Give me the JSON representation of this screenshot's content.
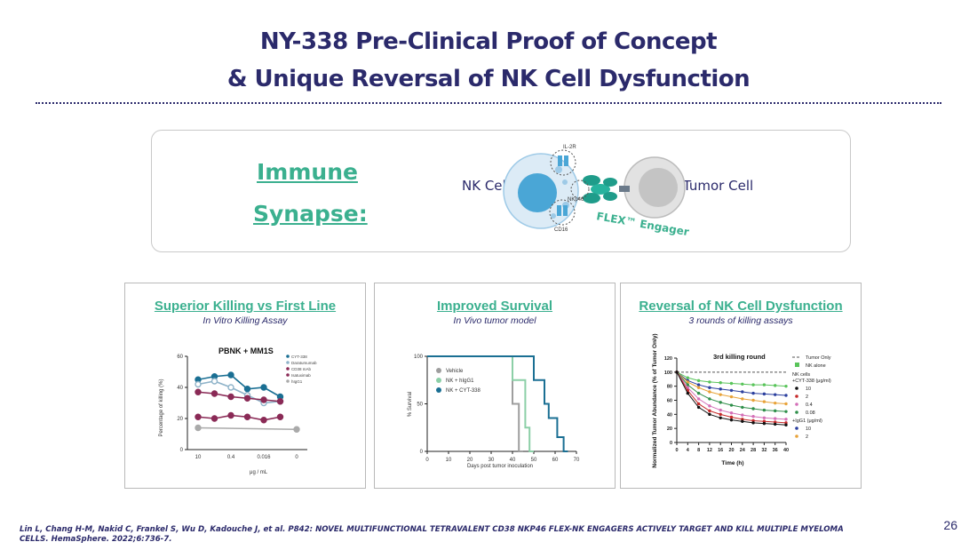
{
  "header": {
    "title_line1": "NY-338 Pre-Clinical Proof of Concept",
    "title_line2": "& Unique Reversal of NK Cell Dysfunction"
  },
  "synapse": {
    "label_line1": "Immune",
    "label_line2": "Synapse:",
    "nk_cell": "NK Cell",
    "tumor_cell": "Tumor Cell",
    "il2r": "IL-2R",
    "nkp46": "NKp46",
    "cd16": "CD16",
    "engager": "FLEX™ Engager",
    "colors": {
      "accent": "#3bb08f",
      "navy": "#2b2a6b",
      "nk": "#4aa6d6",
      "tumor": "#c4c4c4"
    }
  },
  "panels": {
    "killing": {
      "title": "Superior Killing vs First Line",
      "subtitle": "In Vitro Killing Assay",
      "chart_title": "PBNK + MM1S",
      "legend": [
        "CYT-338",
        "Daratumumab",
        "CD38 mAb",
        "Isatuximab",
        "hIgG1"
      ],
      "ylabel": "Percentage of killing (%)",
      "xlabel": "μg / mL",
      "xticks": [
        "10",
        "0.4",
        "0.016",
        "0"
      ],
      "yticks": [
        "0",
        "20",
        "40",
        "60"
      ]
    },
    "survival": {
      "title": "Improved Survival",
      "subtitle": "In Vivo tumor model",
      "legend": [
        "Vehicle",
        "NK + hIgG1",
        "NK + CYT-338"
      ],
      "ylabel": "% Survival",
      "xlabel": "Days post tumor inoculation",
      "xticks": [
        "0",
        "10",
        "20",
        "30",
        "40",
        "50",
        "60",
        "70"
      ],
      "yticks": [
        "0",
        "50",
        "100"
      ]
    },
    "reversal": {
      "title": "Reversal of NK Cell Dysfunction",
      "subtitle": "3 rounds of  killing assays",
      "chart_title": "3rd killing round",
      "legend": {
        "tumor_only": "Tumor Only",
        "nk_alone": "NK alone",
        "nk_cells": "NK cells",
        "cyt_header": "+CYT-338 (μg/ml)",
        "cyt": [
          "10",
          "2",
          "0.4",
          "0.08"
        ],
        "igg_header": "+IgG1 (μg/ml)",
        "igg": [
          "10",
          "2"
        ]
      },
      "ylabel": "Normalized Tumor Abundance (% of Tumor Only)",
      "xlabel": "Time (h)",
      "xticks": [
        "0",
        "4",
        "8",
        "12",
        "16",
        "20",
        "24",
        "28",
        "32",
        "36",
        "40"
      ],
      "yticks": [
        "0",
        "20",
        "40",
        "60",
        "80",
        "100",
        "120"
      ]
    }
  },
  "chart_data": [
    {
      "type": "line",
      "title": "PBNK + MM1S",
      "xlabel": "μg / mL",
      "ylabel": "Percentage of killing (%)",
      "categories": [
        "10",
        "",
        "0.4",
        "",
        "0.016",
        "",
        "0"
      ],
      "ylim": [
        0,
        60
      ],
      "series": [
        {
          "name": "CYT-338",
          "color": "#1a6f93",
          "values": [
            45,
            47,
            48,
            39,
            40,
            34,
            null
          ]
        },
        {
          "name": "Daratumumab",
          "color": "#8fb3c9",
          "values": [
            42,
            44,
            40,
            35,
            30,
            31,
            null
          ]
        },
        {
          "name": "CD38 mAb",
          "color": "#8a2a56",
          "values": [
            37,
            36,
            34,
            33,
            32,
            31,
            null
          ]
        },
        {
          "name": "Isatuximab",
          "color": "#8a2a56",
          "values": [
            21,
            20,
            22,
            21,
            19,
            21,
            null
          ]
        },
        {
          "name": "hIgG1",
          "color": "#aaaaaa",
          "values": [
            14,
            null,
            null,
            null,
            null,
            null,
            13
          ]
        }
      ]
    },
    {
      "type": "line",
      "xlabel": "Days post tumor inoculation",
      "ylabel": "% Survival",
      "xlim": [
        0,
        70
      ],
      "ylim": [
        0,
        100
      ],
      "series": [
        {
          "name": "Vehicle",
          "color": "#9e9e9e",
          "x": [
            0,
            40,
            40,
            43,
            43,
            45
          ],
          "y": [
            100,
            100,
            50,
            50,
            0,
            0
          ]
        },
        {
          "name": "NK + hIgG1",
          "color": "#8ccfa7",
          "x": [
            0,
            40,
            40,
            46,
            46,
            48,
            48,
            50
          ],
          "y": [
            100,
            100,
            75,
            75,
            25,
            25,
            0,
            0
          ]
        },
        {
          "name": "NK + CYT-338",
          "color": "#1a6f93",
          "x": [
            0,
            50,
            50,
            55,
            55,
            57,
            57,
            61,
            61,
            64,
            64,
            66
          ],
          "y": [
            100,
            100,
            75,
            75,
            50,
            50,
            35,
            35,
            15,
            15,
            0,
            0
          ]
        }
      ]
    },
    {
      "type": "line",
      "title": "3rd killing round",
      "xlabel": "Time (h)",
      "ylabel": "Normalized Tumor Abundance (% of Tumor Only)",
      "xlim": [
        0,
        40
      ],
      "ylim": [
        0,
        120
      ],
      "x": [
        0,
        4,
        8,
        12,
        16,
        20,
        24,
        28,
        32,
        36,
        40
      ],
      "series": [
        {
          "name": "Tumor Only",
          "color": "#555555",
          "values": [
            100,
            100,
            100,
            100,
            100,
            100,
            100,
            100,
            100,
            100,
            100
          ]
        },
        {
          "name": "NK alone",
          "color": "#59c45a",
          "values": [
            100,
            92,
            88,
            86,
            85,
            84,
            83,
            82,
            82,
            81,
            80
          ]
        },
        {
          "name": "IgG1 10",
          "color": "#2b3f9e",
          "values": [
            100,
            88,
            82,
            78,
            76,
            74,
            72,
            70,
            69,
            68,
            67
          ]
        },
        {
          "name": "IgG1 2",
          "color": "#e8a33a",
          "values": [
            100,
            86,
            78,
            72,
            68,
            65,
            62,
            60,
            58,
            56,
            55
          ]
        },
        {
          "name": "CYT-338 0.08",
          "color": "#2f8f4a",
          "values": [
            100,
            82,
            70,
            62,
            57,
            53,
            50,
            48,
            46,
            45,
            44
          ]
        },
        {
          "name": "CYT-338 0.4",
          "color": "#d470b8",
          "values": [
            100,
            78,
            62,
            52,
            46,
            42,
            39,
            37,
            35,
            34,
            33
          ]
        },
        {
          "name": "CYT-338 2",
          "color": "#c62b2b",
          "values": [
            100,
            74,
            55,
            45,
            40,
            36,
            33,
            31,
            30,
            29,
            28
          ]
        },
        {
          "name": "CYT-338 10",
          "color": "#111111",
          "values": [
            100,
            70,
            50,
            40,
            35,
            32,
            30,
            28,
            27,
            26,
            25
          ]
        }
      ]
    }
  ],
  "citation": {
    "line1": "Lin L, Chang H-M, Nakid C, Frankel S, Wu D, Kadouche J, et al. P842: NOVEL MULTIFUNCTIONAL TETRAVALENT CD38 NKP46 FLEX-NK ENGAGERS ACTIVELY TARGET AND KILL MULTIPLE MYELOMA",
    "line2": "CELLS. HemaSphere. 2022;6:736-7."
  },
  "page_number": "26"
}
